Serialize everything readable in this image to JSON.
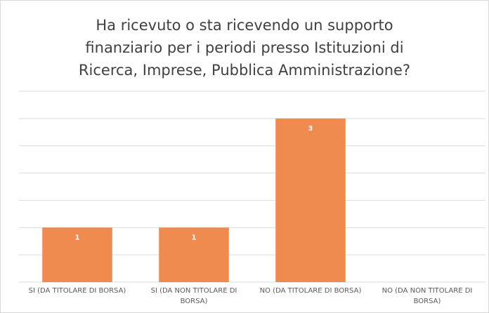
{
  "chart_data": {
    "type": "bar",
    "title": [
      "Ha ricevuto o sta ricevendo un supporto",
      "finanziario per i periodi presso Istituzioni di",
      "Ricerca, Imprese, Pubblica Amministrazione?"
    ],
    "categories": [
      "SI (DA TITOLARE DI BORSA)",
      "SI (DA NON TITOLARE DI BORSA)",
      "NO (DA TITOLARE DI BORSA)",
      "NO (DA NON TITOLARE DI BORSA)"
    ],
    "values": [
      1,
      1,
      3,
      0
    ],
    "color": "#ef8b4f",
    "ylim": [
      0,
      3.5
    ],
    "yticks": [
      0,
      0.5,
      1,
      1.5,
      2,
      2.5,
      3,
      3.5
    ],
    "grid": true,
    "data_labels": true
  }
}
